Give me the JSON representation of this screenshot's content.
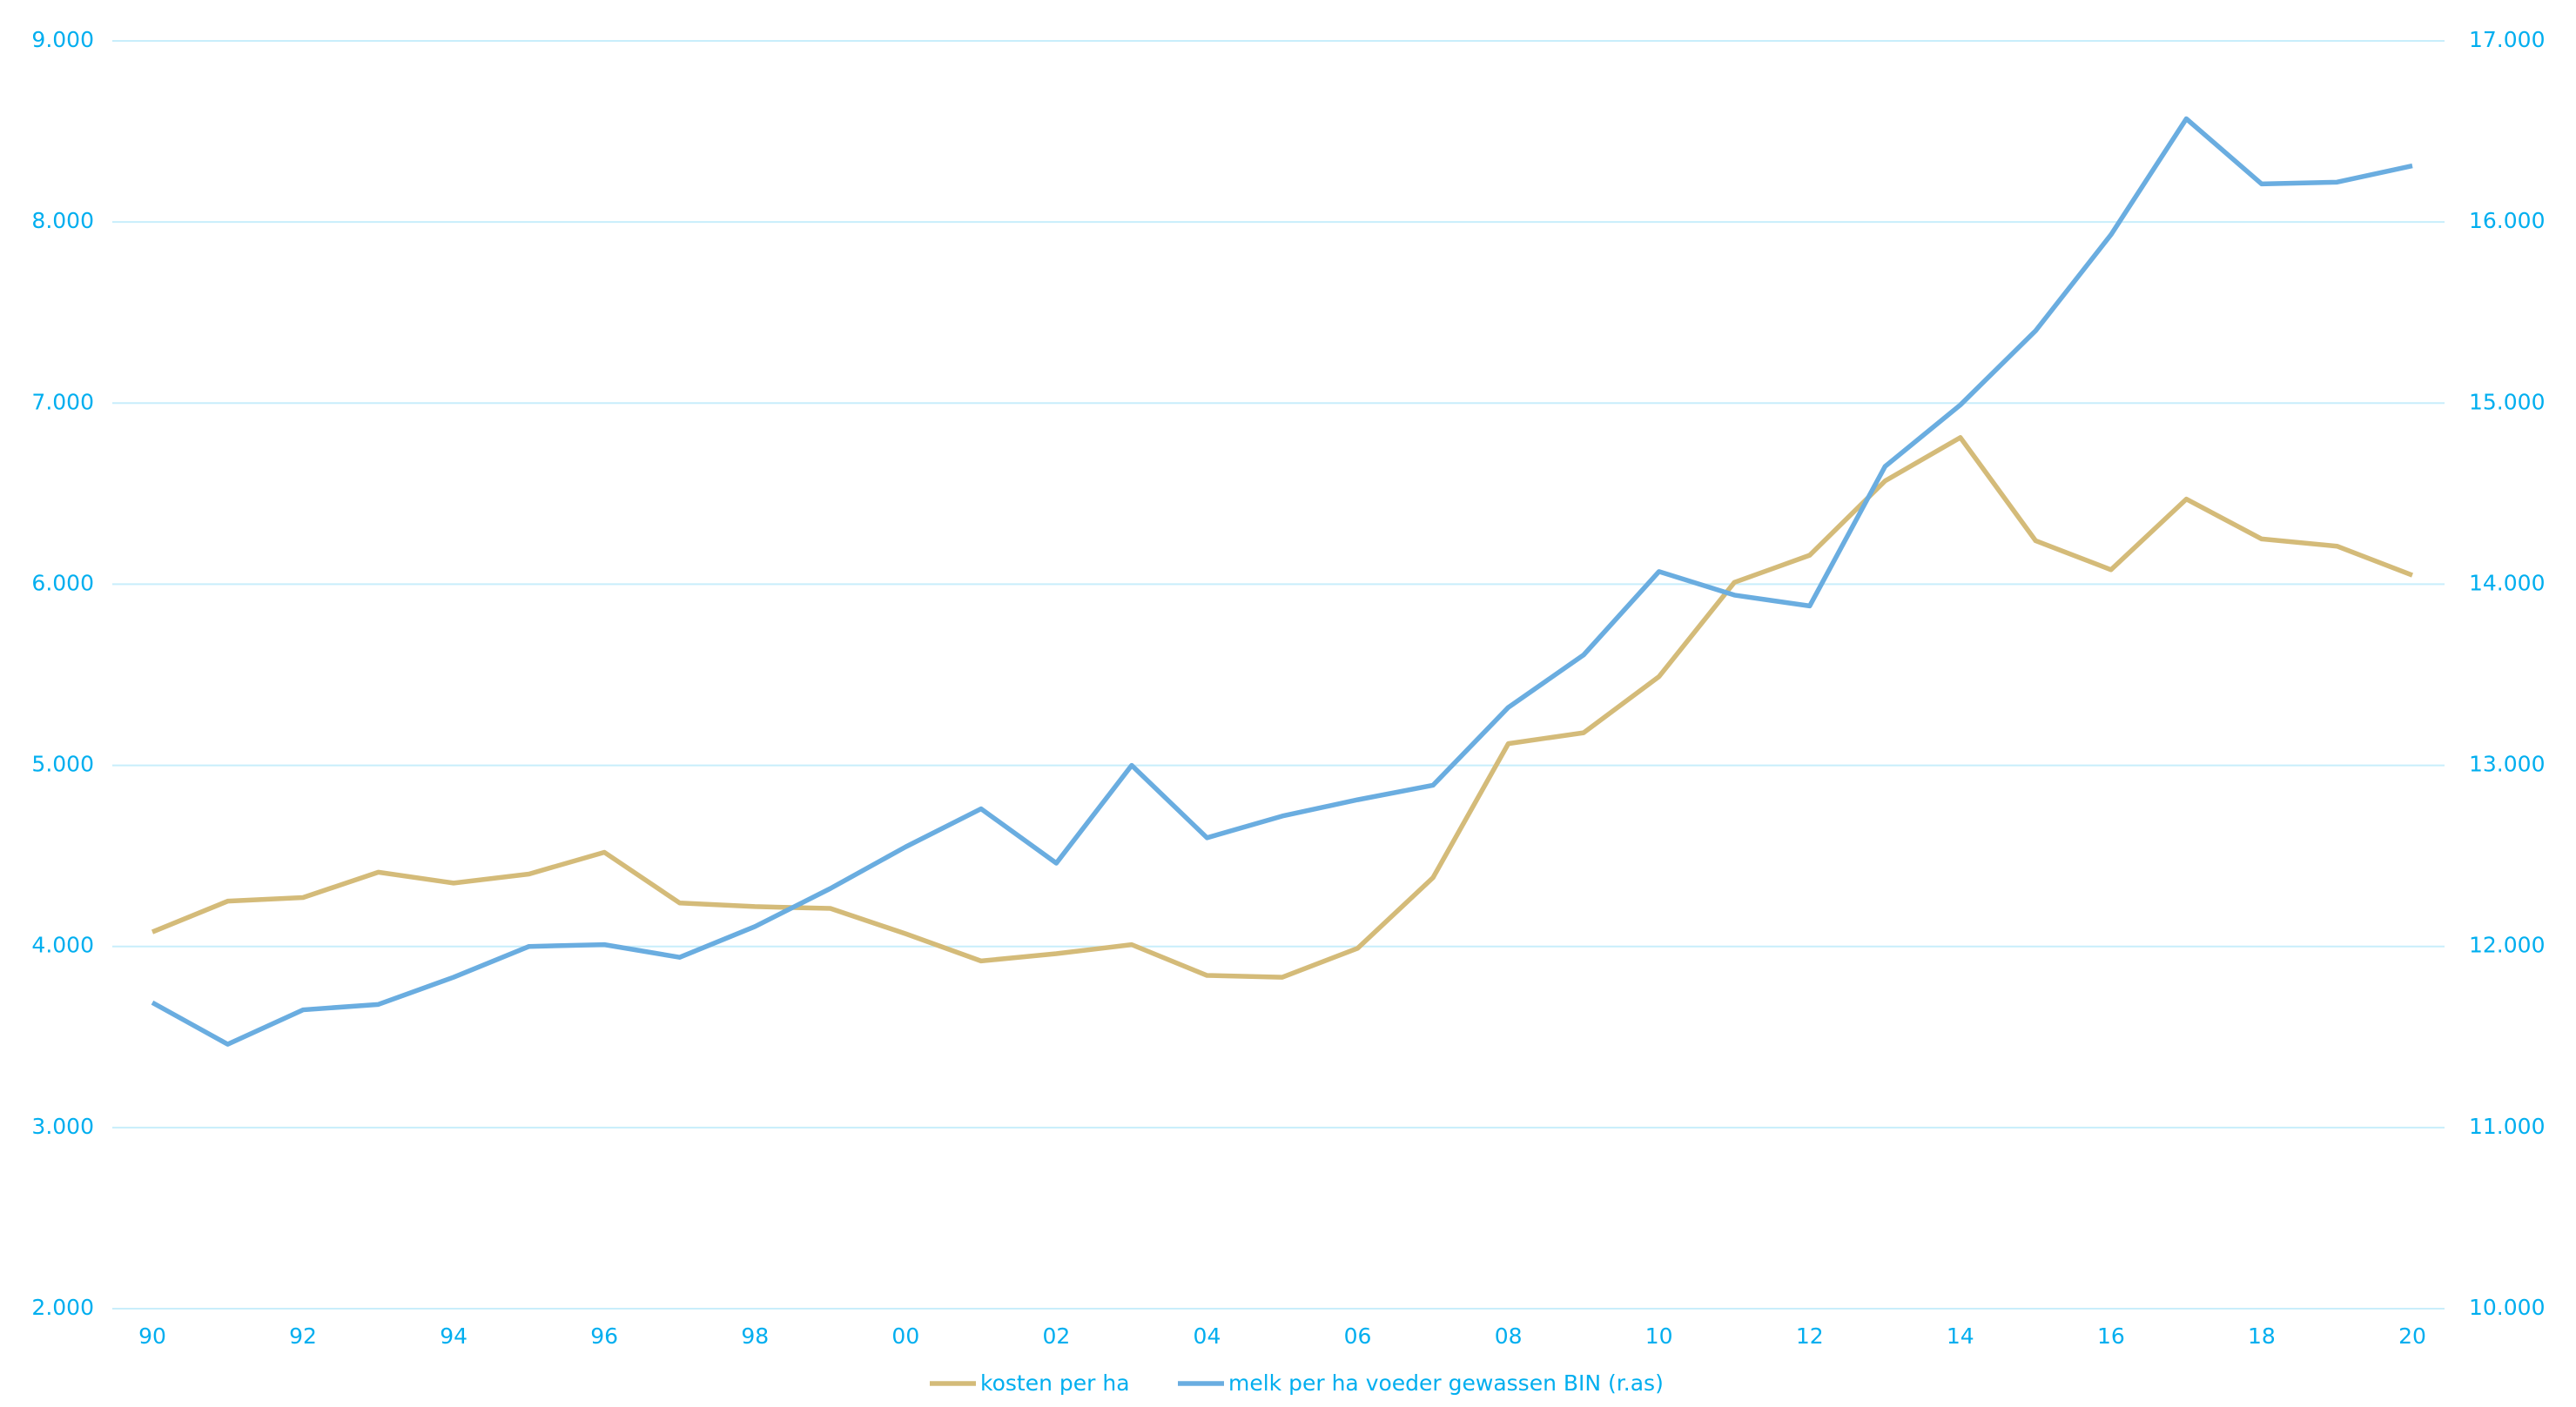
{
  "chart_data": {
    "type": "line",
    "categories": [
      "90",
      null,
      "92",
      null,
      "94",
      null,
      "96",
      null,
      "98",
      null,
      "00",
      null,
      "02",
      null,
      "04",
      null,
      "06",
      null,
      "08",
      null,
      "10",
      null,
      "12",
      null,
      "14",
      null,
      "16",
      null,
      "18",
      null,
      "20"
    ],
    "series": [
      {
        "name": "kosten per ha",
        "color": "#d4bb79",
        "values": [
          4080,
          4250,
          4270,
          4410,
          4350,
          4400,
          4520,
          4240,
          4220,
          4210,
          4070,
          3920,
          3960,
          4010,
          3840,
          3830,
          3990,
          4380,
          5120,
          5180,
          5490,
          6010,
          6160,
          6570,
          6810,
          6240,
          6080,
          6470,
          6250,
          6210,
          6050
        ]
      },
      {
        "name": "melk per ha voeder gewassen BIN (r.as)",
        "color": "#6aade0",
        "axis": "y2",
        "values": [
          11690,
          11460,
          11650,
          11680,
          11830,
          12000,
          12010,
          11940,
          12110,
          12320,
          12550,
          12760,
          12460,
          13000,
          12600,
          12720,
          12810,
          12890,
          13320,
          13610,
          14070,
          13940,
          13880,
          14650,
          14990,
          15400,
          15930,
          16570,
          16210,
          16220,
          16310
        ]
      }
    ],
    "ylim": [
      2000,
      9000
    ],
    "yticks": [
      {
        "value": 2000,
        "label": "2.000"
      },
      {
        "value": 3000,
        "label": "3.000"
      },
      {
        "value": 4000,
        "label": "4.000"
      },
      {
        "value": 5000,
        "label": "5.000"
      },
      {
        "value": 6000,
        "label": "6.000"
      },
      {
        "value": 7000,
        "label": "7.000"
      },
      {
        "value": 8000,
        "label": "8.000"
      },
      {
        "value": 9000,
        "label": "9.000"
      }
    ],
    "y2lim": [
      10000,
      17000
    ],
    "y2ticks": [
      {
        "value": 10000,
        "label": "10.000"
      },
      {
        "value": 11000,
        "label": "11.000"
      },
      {
        "value": 12000,
        "label": "12.000"
      },
      {
        "value": 13000,
        "label": "13.000"
      },
      {
        "value": 14000,
        "label": "14.000"
      },
      {
        "value": 15000,
        "label": "15.000"
      },
      {
        "value": 16000,
        "label": "16.000"
      },
      {
        "value": 17000,
        "label": "17.000"
      }
    ],
    "grid": true,
    "legend": "bottom"
  }
}
